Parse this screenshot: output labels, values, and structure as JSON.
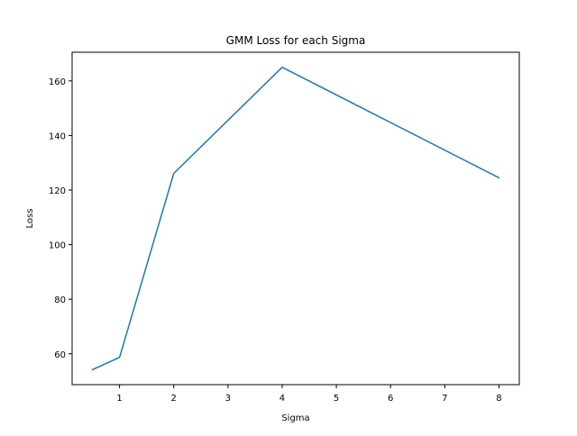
{
  "chart_data": {
    "type": "line",
    "title": "GMM Loss for each Sigma",
    "xlabel": "Sigma",
    "ylabel": "Loss",
    "xlim": [
      0.125,
      8.375
    ],
    "ylim": [
      48.7,
      170.5
    ],
    "x_ticks": [
      1,
      2,
      3,
      4,
      5,
      6,
      7,
      8
    ],
    "y_ticks": [
      60,
      80,
      100,
      120,
      140,
      160
    ],
    "grid": false,
    "series": [
      {
        "x": [
          0.5,
          1,
          2,
          4,
          8
        ],
        "y": [
          54.2,
          58.7,
          126.1,
          165.0,
          124.5
        ],
        "color": "#1f77b4"
      }
    ]
  }
}
